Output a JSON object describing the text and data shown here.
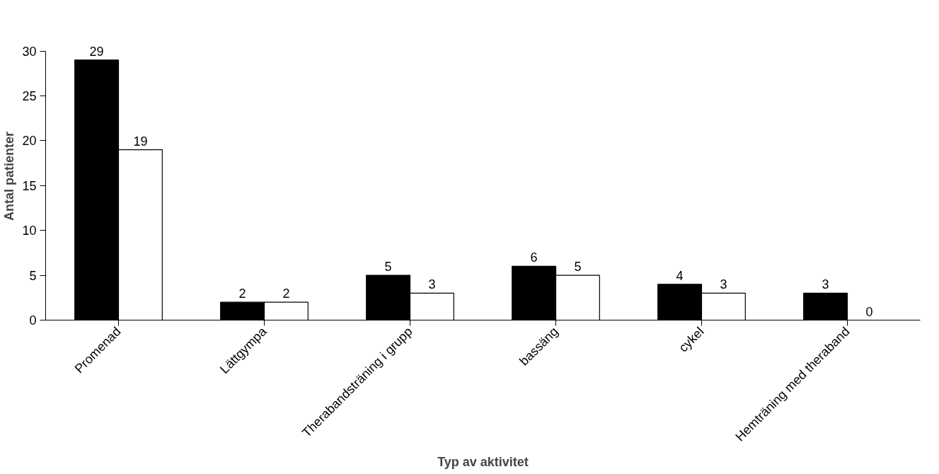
{
  "chart_data": {
    "type": "bar",
    "xlabel": "Typ av aktivitet",
    "ylabel": "Antal patienter",
    "categories": [
      "Promenad",
      "Lättgympa",
      "Therabandsträning i grupp",
      "bassäng",
      "cykel",
      "Hemträning med theraband"
    ],
    "series": [
      {
        "color": "#000000",
        "values": [
          29,
          2,
          5,
          6,
          4,
          3
        ]
      },
      {
        "color": "#ffffff",
        "values": [
          19,
          2,
          3,
          5,
          3,
          0
        ]
      }
    ],
    "ylim": [
      0,
      30
    ],
    "yticks": [
      0,
      5,
      10,
      15,
      20,
      25,
      30
    ],
    "data_labels": true,
    "grid": false
  }
}
